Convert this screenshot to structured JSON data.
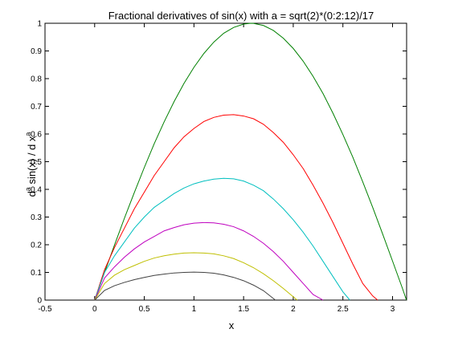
{
  "chart_data": {
    "type": "line",
    "title": "Fractional derivatives of sin(x) with a = sqrt(2)*(0:2:12)/17",
    "xlabel": "x",
    "ylabel": {
      "d": "d",
      "sup_a": "a",
      "middle": " sin(x) / d x",
      "sup_a2": "a"
    },
    "xlim": [
      -0.5,
      3.14159
    ],
    "ylim": [
      0,
      1
    ],
    "xticks": [
      "-0.5",
      "0",
      "0.5",
      "1",
      "1.5",
      "2",
      "2.5",
      "3"
    ],
    "yticks": [
      "0",
      "0.1",
      "0.2",
      "0.3",
      "0.4",
      "0.5",
      "0.6",
      "0.7",
      "0.8",
      "0.9",
      "1"
    ],
    "xtick_values": [
      -0.5,
      0,
      0.5,
      1,
      1.5,
      2,
      2.5,
      3
    ],
    "ytick_values": [
      0,
      0.1,
      0.2,
      0.3,
      0.4,
      0.5,
      0.6,
      0.7,
      0.8,
      0.9,
      1
    ],
    "grid": false,
    "series": [
      {
        "color": "#008000",
        "x": [
          0,
          0.1,
          0.2,
          0.3,
          0.4,
          0.5,
          0.6,
          0.7,
          0.8,
          0.9,
          1.0,
          1.1,
          1.2,
          1.3,
          1.4,
          1.5,
          1.571,
          1.6,
          1.7,
          1.8,
          1.9,
          2.0,
          2.1,
          2.2,
          2.3,
          2.4,
          2.5,
          2.6,
          2.7,
          2.8,
          2.9,
          3.0,
          3.1,
          3.14
        ],
        "y": [
          0,
          0.1,
          0.199,
          0.296,
          0.389,
          0.479,
          0.565,
          0.644,
          0.717,
          0.783,
          0.841,
          0.891,
          0.932,
          0.964,
          0.985,
          0.997,
          1.0,
          0.9996,
          0.992,
          0.974,
          0.946,
          0.909,
          0.863,
          0.808,
          0.746,
          0.675,
          0.598,
          0.516,
          0.427,
          0.335,
          0.239,
          0.141,
          0.042,
          0
        ]
      },
      {
        "color": "#ff0000",
        "x": [
          0,
          0.1,
          0.2,
          0.3,
          0.4,
          0.5,
          0.6,
          0.7,
          0.8,
          0.9,
          1.0,
          1.1,
          1.2,
          1.3,
          1.4,
          1.5,
          1.6,
          1.7,
          1.8,
          1.9,
          2.0,
          2.1,
          2.2,
          2.3,
          2.4,
          2.5,
          2.6,
          2.7,
          2.8,
          2.85
        ],
        "y": [
          0,
          0.11,
          0.19,
          0.26,
          0.33,
          0.39,
          0.45,
          0.5,
          0.55,
          0.59,
          0.62,
          0.645,
          0.66,
          0.668,
          0.67,
          0.665,
          0.655,
          0.635,
          0.605,
          0.57,
          0.525,
          0.475,
          0.415,
          0.35,
          0.28,
          0.205,
          0.13,
          0.06,
          0.015,
          0
        ]
      },
      {
        "color": "#00bfbf",
        "x": [
          0,
          0.1,
          0.2,
          0.3,
          0.4,
          0.5,
          0.6,
          0.7,
          0.8,
          0.9,
          1.0,
          1.1,
          1.2,
          1.3,
          1.4,
          1.5,
          1.6,
          1.7,
          1.8,
          1.9,
          2.0,
          2.1,
          2.2,
          2.3,
          2.4,
          2.5,
          2.57
        ],
        "y": [
          0,
          0.1,
          0.16,
          0.21,
          0.26,
          0.3,
          0.335,
          0.36,
          0.385,
          0.405,
          0.42,
          0.43,
          0.437,
          0.44,
          0.438,
          0.43,
          0.415,
          0.395,
          0.365,
          0.33,
          0.29,
          0.245,
          0.195,
          0.14,
          0.085,
          0.03,
          0
        ]
      },
      {
        "color": "#bf00bf",
        "x": [
          0,
          0.1,
          0.2,
          0.3,
          0.4,
          0.5,
          0.6,
          0.7,
          0.8,
          0.9,
          1.0,
          1.1,
          1.2,
          1.3,
          1.4,
          1.5,
          1.6,
          1.7,
          1.8,
          1.9,
          2.0,
          2.1,
          2.2,
          2.3
        ],
        "y": [
          0,
          0.08,
          0.12,
          0.155,
          0.185,
          0.21,
          0.23,
          0.25,
          0.262,
          0.272,
          0.278,
          0.28,
          0.279,
          0.274,
          0.265,
          0.25,
          0.23,
          0.205,
          0.175,
          0.14,
          0.1,
          0.06,
          0.02,
          0
        ]
      },
      {
        "color": "#bfbf00",
        "x": [
          0,
          0.1,
          0.2,
          0.3,
          0.4,
          0.5,
          0.6,
          0.7,
          0.8,
          0.9,
          1.0,
          1.1,
          1.2,
          1.3,
          1.4,
          1.5,
          1.6,
          1.7,
          1.8,
          1.9,
          2.0,
          2.04
        ],
        "y": [
          0,
          0.06,
          0.09,
          0.11,
          0.125,
          0.14,
          0.152,
          0.16,
          0.166,
          0.17,
          0.171,
          0.17,
          0.167,
          0.16,
          0.15,
          0.135,
          0.117,
          0.095,
          0.07,
          0.042,
          0.012,
          0
        ]
      },
      {
        "color": "#404040",
        "x": [
          0,
          0.1,
          0.2,
          0.3,
          0.4,
          0.5,
          0.6,
          0.7,
          0.8,
          0.9,
          1.0,
          1.1,
          1.2,
          1.3,
          1.4,
          1.5,
          1.6,
          1.7,
          1.82
        ],
        "y": [
          0,
          0.035,
          0.052,
          0.064,
          0.074,
          0.082,
          0.089,
          0.094,
          0.098,
          0.1,
          0.101,
          0.1,
          0.097,
          0.091,
          0.082,
          0.07,
          0.054,
          0.034,
          0
        ]
      }
    ]
  }
}
